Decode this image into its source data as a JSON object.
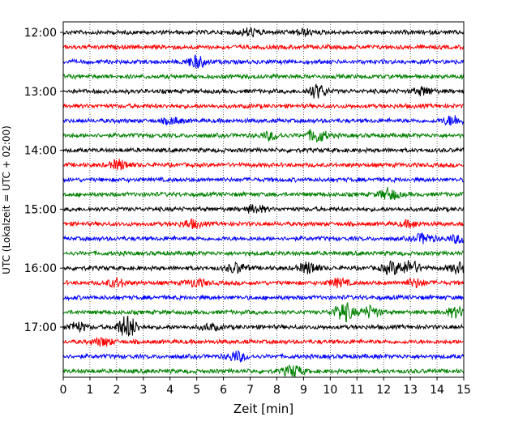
{
  "chart_data": {
    "type": "line",
    "title": "",
    "xlabel": "Zeit  [min]",
    "ylabel": "UTC (Lokalzeit = UTC + 02:00)",
    "xlim": [
      0,
      15
    ],
    "x_ticks": [
      "0",
      "1",
      "2",
      "3",
      "4",
      "5",
      "6",
      "7",
      "8",
      "9",
      "10",
      "11",
      "12",
      "13",
      "14",
      "15"
    ],
    "y_ticks": [
      "12:00",
      "13:00",
      "14:00",
      "15:00",
      "16:00",
      "17:00"
    ],
    "grid": "vertical dotted at each minute",
    "trace_interval_min": 15,
    "trace_colors": [
      "#000000",
      "#ff0000",
      "#0000ff",
      "#008000"
    ],
    "traces": [
      {
        "start": "12:00",
        "color": "#000000"
      },
      {
        "start": "12:15",
        "color": "#ff0000"
      },
      {
        "start": "12:30",
        "color": "#0000ff"
      },
      {
        "start": "12:45",
        "color": "#008000"
      },
      {
        "start": "13:00",
        "color": "#000000"
      },
      {
        "start": "13:15",
        "color": "#ff0000"
      },
      {
        "start": "13:30",
        "color": "#0000ff"
      },
      {
        "start": "13:45",
        "color": "#008000"
      },
      {
        "start": "14:00",
        "color": "#000000"
      },
      {
        "start": "14:15",
        "color": "#ff0000"
      },
      {
        "start": "14:30",
        "color": "#0000ff"
      },
      {
        "start": "14:45",
        "color": "#008000"
      },
      {
        "start": "15:00",
        "color": "#000000"
      },
      {
        "start": "15:15",
        "color": "#ff0000"
      },
      {
        "start": "15:30",
        "color": "#0000ff"
      },
      {
        "start": "15:45",
        "color": "#008000"
      },
      {
        "start": "16:00",
        "color": "#000000"
      },
      {
        "start": "16:15",
        "color": "#ff0000"
      },
      {
        "start": "16:30",
        "color": "#0000ff"
      },
      {
        "start": "16:45",
        "color": "#008000"
      },
      {
        "start": "17:00",
        "color": "#000000"
      },
      {
        "start": "17:15",
        "color": "#ff0000"
      },
      {
        "start": "17:30",
        "color": "#0000ff"
      },
      {
        "start": "17:45",
        "color": "#008000"
      }
    ]
  }
}
